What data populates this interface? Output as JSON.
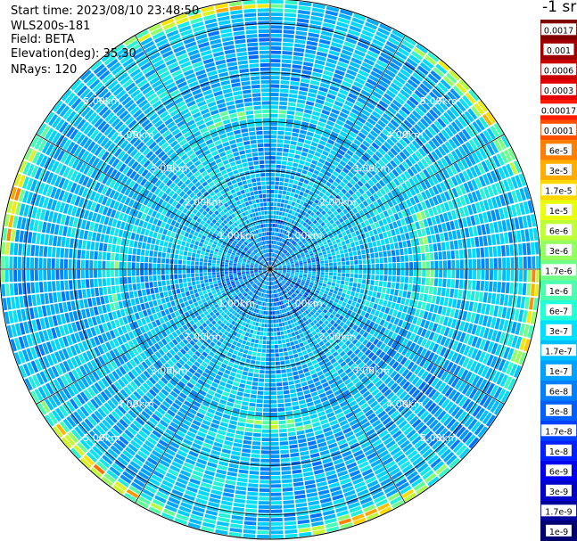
{
  "header": {
    "start_time": "Start time: 2023/08/10 23:48:50",
    "instrument": "WLS200s-181",
    "field": "Field: BETA",
    "elevation": "Elevation(deg): 35.30",
    "nrays": "NRays: 120"
  },
  "colorbar": {
    "title": "-1 sr",
    "ticks": [
      "0.0017",
      "0.001",
      "0.0006",
      "0.0003",
      "0.00017",
      "0.0001",
      "6e-5",
      "3e-5",
      "1.7e-5",
      "1e-5",
      "6e-6",
      "3e-6",
      "1.7e-6",
      "1e-6",
      "6e-7",
      "3e-7",
      "1.7e-7",
      "1e-7",
      "6e-8",
      "3e-8",
      "1.7e-8",
      "1e-8",
      "6e-9",
      "3e-9",
      "1.7e-9",
      "1e-9"
    ],
    "colors": [
      "#800000",
      "#a00000",
      "#c80000",
      "#e40000",
      "#ff1c00",
      "#ff5000",
      "#ff8000",
      "#ffae00",
      "#ffd800",
      "#e8ff10",
      "#c0ff36",
      "#96ff60",
      "#70ff88",
      "#4cffb0",
      "#24ffd8",
      "#00e0ff",
      "#00bfff",
      "#00a0ff",
      "#0080ff",
      "#0060ff",
      "#0040ff",
      "#0020ff",
      "#0000f0",
      "#0000c8",
      "#00009c",
      "#000070"
    ]
  },
  "chart_data": {
    "type": "heatmap",
    "projection": "polar-ppi",
    "variable": "BETA",
    "units": "sr-1",
    "n_rays": 120,
    "elevation_deg": 35.3,
    "range_rings_km": [
      1,
      2,
      3,
      4,
      5
    ],
    "range_ring_labels": [
      "1.00km",
      "2.00km",
      "3.00km",
      "4.00km",
      "5.00km"
    ],
    "color_scale": "log",
    "value_range": [
      1e-09,
      0.0017
    ],
    "typical_value_range": [
      1e-08,
      3e-07
    ],
    "enhanced_bands": [
      {
        "range_km": 5.4,
        "level": "1e-6 to 1.7e-5"
      },
      {
        "range_km": 3.2,
        "level": "1e-6 to 3e-6"
      }
    ]
  }
}
